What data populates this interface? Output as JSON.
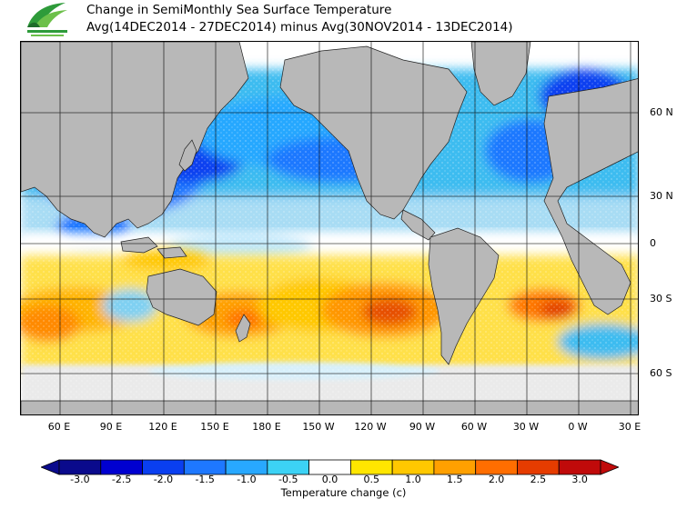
{
  "title": {
    "line1": "Change in SemiMonthly Sea Surface Temperature",
    "line2": "Avg(14DEC2014 - 27DEC2014) minus Avg(30NOV2014 - 13DEC2014)"
  },
  "map": {
    "longitude_labels": [
      "60 E",
      "90 E",
      "120 E",
      "150 E",
      "180 E",
      "150 W",
      "120 W",
      "90 W",
      "60 W",
      "30 W",
      "0 W",
      "30 E"
    ],
    "latitude_labels": [
      "60 N",
      "30 N",
      "0",
      "30 S",
      "60 S"
    ],
    "land_color": "#b8b8b8",
    "ice_color": "#e2e2e2",
    "ocean_regions": [
      {
        "name": "north-pacific-cooling",
        "change": -1.0
      },
      {
        "name": "kuroshio-cooling",
        "change": -2.0
      },
      {
        "name": "north-atlantic-cooling",
        "change": -1.0
      },
      {
        "name": "tropical-pacific-mixed",
        "change": 0.0
      },
      {
        "name": "south-pacific-warming",
        "change": 1.0
      },
      {
        "name": "southeast-pacific-warming",
        "change": 2.5
      },
      {
        "name": "south-atlantic-warming",
        "change": 2.0
      },
      {
        "name": "south-indian-warming",
        "change": 1.5
      },
      {
        "name": "tasman-sea-warming",
        "change": 2.0
      }
    ]
  },
  "colorbar": {
    "title": "Temperature change  (c)",
    "ticks": [
      "-3.0",
      "-2.5",
      "-2.0",
      "-1.5",
      "-1.0",
      "-0.5",
      "0.0",
      "0.5",
      "1.0",
      "1.5",
      "2.0",
      "2.5",
      "3.0"
    ],
    "colors": [
      "#0a0a8c",
      "#0000d0",
      "#0a3ff0",
      "#1e78ff",
      "#28a8ff",
      "#3cd2f5",
      "#ffffff",
      "#ffe600",
      "#ffc800",
      "#ffa000",
      "#ff6e00",
      "#e63c00",
      "#c00a0a"
    ]
  }
}
